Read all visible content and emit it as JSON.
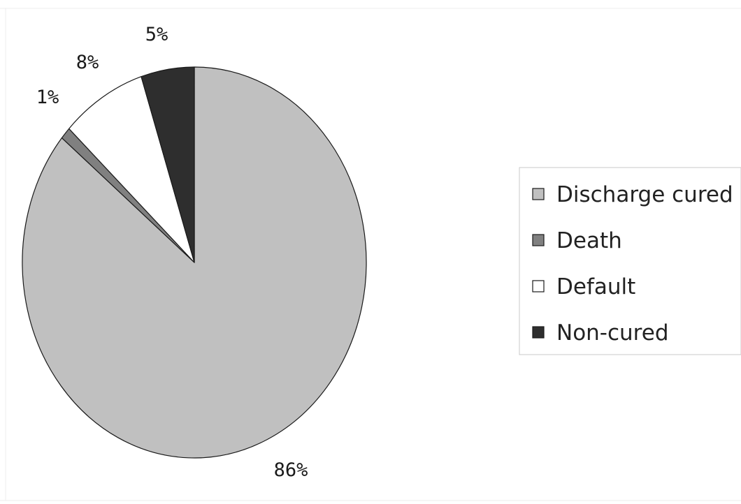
{
  "chart_data": {
    "type": "pie",
    "slices": [
      {
        "label": "Discharge cured",
        "value": 86,
        "value_label": "86%",
        "color": "#c0c0c0"
      },
      {
        "label": "Death",
        "value": 1,
        "value_label": "1%",
        "color": "#808080"
      },
      {
        "label": "Default",
        "value": 8,
        "value_label": "8%",
        "color": "#ffffff"
      },
      {
        "label": "Non-cured",
        "value": 5,
        "value_label": "5%",
        "color": "#2e2e2e"
      }
    ],
    "start": "12 o'clock",
    "direction": "clockwise",
    "legend_position": "right"
  }
}
